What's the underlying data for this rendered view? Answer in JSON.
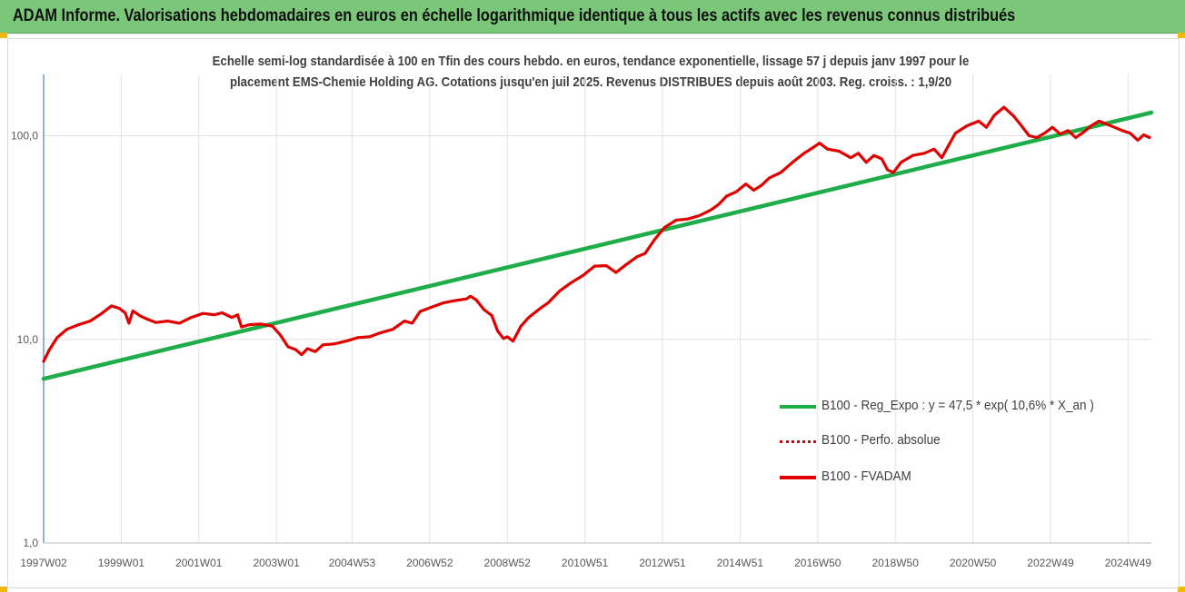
{
  "header": {
    "title": "ADAM Informe. Valorisations hebdomadaires en euros en échelle logarithmique identique à tous les actifs avec les revenus connus distribués"
  },
  "colors": {
    "title_bar": "#7ac77a",
    "trend": "#1fad4a",
    "perf": "#e00000",
    "fvadam": "#e00000",
    "axis_text": "#595959"
  },
  "chart_data": {
    "type": "line",
    "title": [
      "Echelle semi-log standardisée à 100 en Tfin des cours hebdo. en euros, tendance exponentielle, lissage 57 j depuis janv 1997 pour le",
      "placement EMS-Chemie Holding AG. Cotations jusqu'en juil 2025.  Revenus DISTRIBUES depuis août 2003. Reg. croiss. : 1,9/20"
    ],
    "y_scale": "log",
    "ylim": [
      1,
      200
    ],
    "y_ticks": [
      {
        "value": 1,
        "label": "1,0"
      },
      {
        "value": 10,
        "label": "10,0"
      },
      {
        "value": 100,
        "label": "100,0"
      }
    ],
    "x_range": [
      1997.0,
      2025.55
    ],
    "x_ticks": [
      {
        "x": 1997.0,
        "label": "1997W02"
      },
      {
        "x": 1999.0,
        "label": "1999W01"
      },
      {
        "x": 2001.0,
        "label": "2001W01"
      },
      {
        "x": 2003.0,
        "label": "2003W01"
      },
      {
        "x": 2004.95,
        "label": "2004W53"
      },
      {
        "x": 2006.95,
        "label": "2006W52"
      },
      {
        "x": 2008.95,
        "label": "2008W52"
      },
      {
        "x": 2010.95,
        "label": "2010W51"
      },
      {
        "x": 2012.95,
        "label": "2012W51"
      },
      {
        "x": 2014.95,
        "label": "2014W51"
      },
      {
        "x": 2016.95,
        "label": "2016W50"
      },
      {
        "x": 2018.95,
        "label": "2018W50"
      },
      {
        "x": 2020.95,
        "label": "2020W50"
      },
      {
        "x": 2022.95,
        "label": "2022W49"
      },
      {
        "x": 2024.95,
        "label": "2024W49"
      }
    ],
    "series": [
      {
        "name": "B100 - Reg_Expo : y = 47,5 * exp( 10,6% *  X_an )",
        "style": "solid-green",
        "points": [
          [
            1997.0,
            6.4
          ],
          [
            2025.55,
            130
          ]
        ]
      },
      {
        "name": "B100 - Perfo. absolue",
        "style": "dotted-red",
        "points": []
      },
      {
        "name": "B100 - FVADAM",
        "style": "solid-red",
        "points": [
          [
            1997.0,
            7.8
          ],
          [
            1997.15,
            8.9
          ],
          [
            1997.35,
            10.2
          ],
          [
            1997.6,
            11.2
          ],
          [
            1997.9,
            11.8
          ],
          [
            1998.2,
            12.3
          ],
          [
            1998.5,
            13.4
          ],
          [
            1998.75,
            14.6
          ],
          [
            1998.95,
            14.2
          ],
          [
            1999.1,
            13.5
          ],
          [
            1999.2,
            12.0
          ],
          [
            1999.3,
            13.8
          ],
          [
            1999.5,
            13.0
          ],
          [
            1999.7,
            12.5
          ],
          [
            1999.9,
            12.1
          ],
          [
            2000.2,
            12.3
          ],
          [
            2000.5,
            12.0
          ],
          [
            2000.8,
            12.8
          ],
          [
            2001.1,
            13.4
          ],
          [
            2001.4,
            13.2
          ],
          [
            2001.6,
            13.5
          ],
          [
            2001.85,
            12.8
          ],
          [
            2002.0,
            13.2
          ],
          [
            2002.1,
            11.5
          ],
          [
            2002.3,
            11.8
          ],
          [
            2002.6,
            11.9
          ],
          [
            2002.9,
            11.6
          ],
          [
            2003.1,
            10.5
          ],
          [
            2003.3,
            9.2
          ],
          [
            2003.5,
            8.9
          ],
          [
            2003.65,
            8.4
          ],
          [
            2003.8,
            9.0
          ],
          [
            2004.0,
            8.7
          ],
          [
            2004.2,
            9.4
          ],
          [
            2004.5,
            9.5
          ],
          [
            2004.8,
            9.8
          ],
          [
            2005.1,
            10.2
          ],
          [
            2005.4,
            10.3
          ],
          [
            2005.7,
            10.8
          ],
          [
            2006.0,
            11.2
          ],
          [
            2006.3,
            12.3
          ],
          [
            2006.5,
            12.0
          ],
          [
            2006.7,
            13.7
          ],
          [
            2007.0,
            14.4
          ],
          [
            2007.3,
            15.1
          ],
          [
            2007.6,
            15.5
          ],
          [
            2007.9,
            15.8
          ],
          [
            2008.0,
            16.3
          ],
          [
            2008.15,
            15.6
          ],
          [
            2008.35,
            14.0
          ],
          [
            2008.55,
            13.1
          ],
          [
            2008.7,
            11.0
          ],
          [
            2008.85,
            10.1
          ],
          [
            2008.95,
            10.3
          ],
          [
            2009.1,
            9.8
          ],
          [
            2009.3,
            11.6
          ],
          [
            2009.5,
            12.8
          ],
          [
            2009.8,
            14.2
          ],
          [
            2010.0,
            15.1
          ],
          [
            2010.3,
            17.3
          ],
          [
            2010.6,
            19.0
          ],
          [
            2010.9,
            20.6
          ],
          [
            2011.2,
            22.9
          ],
          [
            2011.5,
            23.0
          ],
          [
            2011.75,
            21.3
          ],
          [
            2012.0,
            23.2
          ],
          [
            2012.3,
            25.5
          ],
          [
            2012.5,
            26.4
          ],
          [
            2012.75,
            31.0
          ],
          [
            2013.0,
            35.4
          ],
          [
            2013.3,
            38.5
          ],
          [
            2013.6,
            39.0
          ],
          [
            2013.9,
            40.5
          ],
          [
            2014.2,
            43.2
          ],
          [
            2014.4,
            46.0
          ],
          [
            2014.6,
            50.5
          ],
          [
            2014.85,
            53.0
          ],
          [
            2015.1,
            58.0
          ],
          [
            2015.3,
            54.0
          ],
          [
            2015.5,
            57.0
          ],
          [
            2015.7,
            62.0
          ],
          [
            2016.0,
            66.0
          ],
          [
            2016.3,
            74.0
          ],
          [
            2016.6,
            82.0
          ],
          [
            2016.85,
            88.0
          ],
          [
            2017.0,
            92.0
          ],
          [
            2017.2,
            86.0
          ],
          [
            2017.5,
            84.0
          ],
          [
            2017.8,
            78.0
          ],
          [
            2018.0,
            82.0
          ],
          [
            2018.2,
            74.0
          ],
          [
            2018.4,
            80.0
          ],
          [
            2018.6,
            77.0
          ],
          [
            2018.75,
            68.0
          ],
          [
            2018.9,
            66.0
          ],
          [
            2019.1,
            74.0
          ],
          [
            2019.4,
            80.0
          ],
          [
            2019.7,
            82.0
          ],
          [
            2019.95,
            86.0
          ],
          [
            2020.15,
            78.0
          ],
          [
            2020.3,
            88.0
          ],
          [
            2020.5,
            103.0
          ],
          [
            2020.8,
            112.0
          ],
          [
            2021.1,
            118.0
          ],
          [
            2021.3,
            110.0
          ],
          [
            2021.5,
            126.0
          ],
          [
            2021.75,
            138.0
          ],
          [
            2022.0,
            125.0
          ],
          [
            2022.2,
            112.0
          ],
          [
            2022.4,
            100.0
          ],
          [
            2022.6,
            98.0
          ],
          [
            2022.8,
            103.0
          ],
          [
            2023.0,
            110.0
          ],
          [
            2023.2,
            102.0
          ],
          [
            2023.4,
            106.0
          ],
          [
            2023.6,
            98.0
          ],
          [
            2023.8,
            104.0
          ],
          [
            2024.0,
            112.0
          ],
          [
            2024.2,
            118.0
          ],
          [
            2024.4,
            114.0
          ],
          [
            2024.6,
            110.0
          ],
          [
            2024.8,
            106.0
          ],
          [
            2025.0,
            103.0
          ],
          [
            2025.2,
            95.0
          ],
          [
            2025.35,
            101.0
          ],
          [
            2025.5,
            98.0
          ]
        ]
      }
    ],
    "legend_position": "lower-right",
    "grid": "horizontal-and-vertical"
  }
}
